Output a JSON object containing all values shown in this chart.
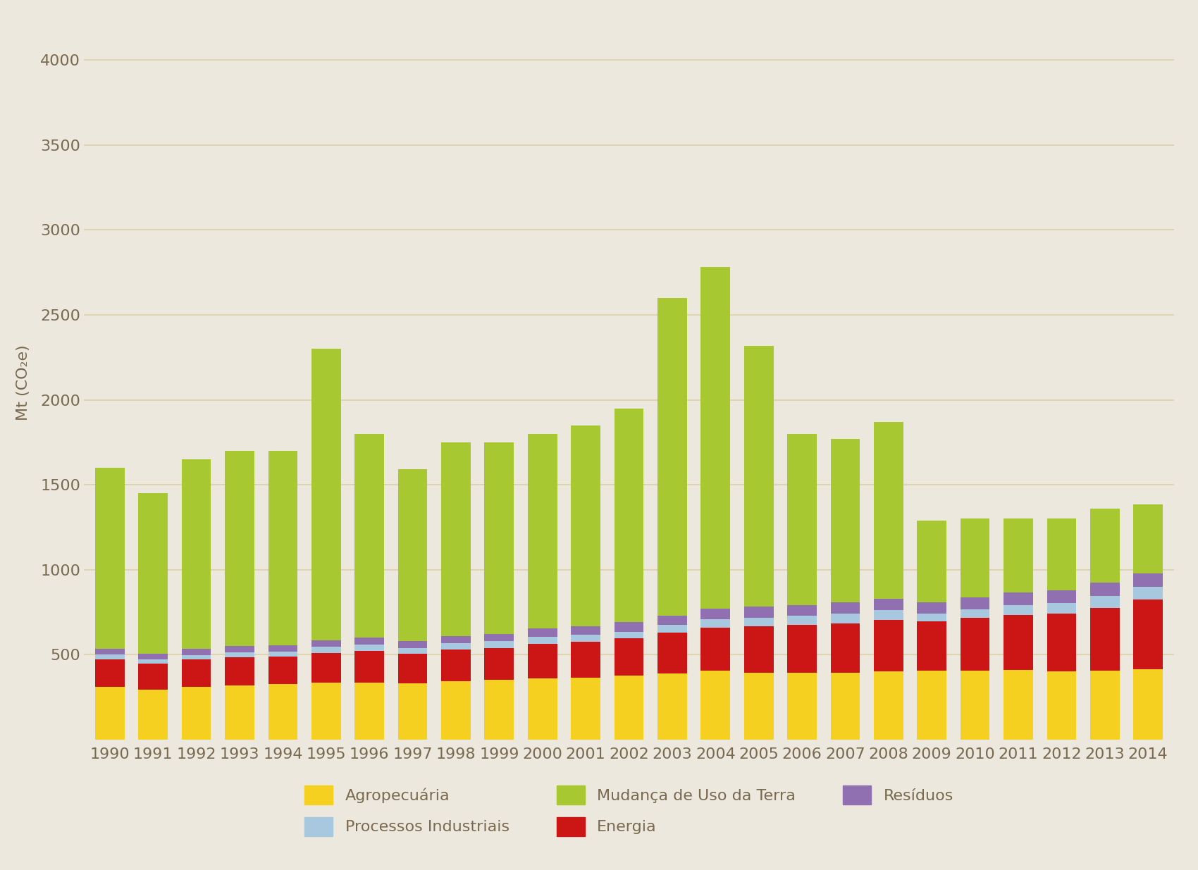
{
  "years": [
    1990,
    1991,
    1992,
    1993,
    1994,
    1995,
    1996,
    1997,
    1998,
    1999,
    2000,
    2001,
    2002,
    2003,
    2004,
    2005,
    2006,
    2007,
    2008,
    2009,
    2010,
    2011,
    2012,
    2013,
    2014
  ],
  "agropecuaria": [
    310,
    295,
    310,
    320,
    325,
    335,
    335,
    330,
    345,
    350,
    360,
    365,
    375,
    390,
    405,
    395,
    395,
    395,
    400,
    405,
    405,
    410,
    400,
    405,
    415
  ],
  "energia": [
    160,
    150,
    160,
    165,
    165,
    175,
    185,
    175,
    185,
    190,
    205,
    210,
    220,
    240,
    255,
    270,
    280,
    290,
    305,
    290,
    310,
    325,
    340,
    370,
    410
  ],
  "processos_industriais": [
    30,
    25,
    27,
    28,
    28,
    35,
    37,
    35,
    37,
    38,
    40,
    40,
    40,
    43,
    50,
    53,
    53,
    57,
    57,
    47,
    53,
    57,
    63,
    70,
    73
  ],
  "residuos": [
    35,
    33,
    35,
    37,
    37,
    40,
    42,
    41,
    43,
    45,
    50,
    53,
    55,
    57,
    60,
    63,
    63,
    65,
    67,
    67,
    70,
    73,
    75,
    77,
    80
  ],
  "mudanca_uso_terra": [
    1065,
    947,
    1118,
    1150,
    1145,
    1715,
    1201,
    1009,
    1140,
    1127,
    1145,
    1182,
    1260,
    1870,
    2010,
    1535,
    1009,
    963,
    1041,
    481,
    462,
    435,
    422,
    438,
    407
  ],
  "colors": {
    "agropecuaria": "#f5d020",
    "energia": "#cc1515",
    "processos_industriais": "#a8c8e0",
    "residuos": "#9070b0",
    "mudanca_uso_terra": "#a8c832"
  },
  "legend_labels": [
    "Agropecuária",
    "Processos Industriais",
    "Mudança de Uso da Terra",
    "Energia",
    "Resíduos"
  ],
  "ylabel": "Mt (CO₂e)",
  "ylim": [
    0,
    4200
  ],
  "yticks": [
    500,
    1000,
    1500,
    2000,
    2500,
    3000,
    3500,
    4000
  ],
  "background_color": "#ece8dd",
  "grid_color": "#ddd0aa",
  "text_color": "#7a6a50",
  "tick_fontsize": 16,
  "legend_fontsize": 16,
  "bar_width": 0.68
}
